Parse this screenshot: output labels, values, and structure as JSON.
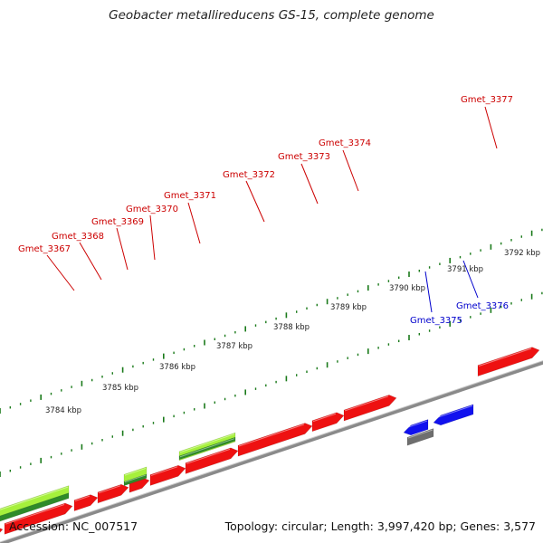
{
  "title": "Geobacter metallireducens GS-15, complete genome",
  "accession": "Accession: NC_007517",
  "summary": "Topology: circular; Length: 3,997,420 bp; Genes: 3,577",
  "colors": {
    "forward_cds": "#ee1111",
    "reverse_cds": "#1111ee",
    "light_green": "#a6f03c",
    "dark_green": "#2f8a2a",
    "gray_feature": "#6e6e6e",
    "backbone": "#8a8a8a",
    "tick": "#1a7a1a"
  },
  "tick_labels": [
    "3784 kbp",
    "3785 kbp",
    "3786 kbp",
    "3787 kbp",
    "3788 kbp",
    "3789 kbp",
    "3790 kbp",
    "3791 kbp",
    "3792 kbp"
  ],
  "gene_labels": [
    {
      "name": "Gmet_3367",
      "color": "#cc0000"
    },
    {
      "name": "Gmet_3368",
      "color": "#cc0000"
    },
    {
      "name": "Gmet_3369",
      "color": "#cc0000"
    },
    {
      "name": "Gmet_3370",
      "color": "#cc0000"
    },
    {
      "name": "Gmet_3371",
      "color": "#cc0000"
    },
    {
      "name": "Gmet_3372",
      "color": "#cc0000"
    },
    {
      "name": "Gmet_3373",
      "color": "#cc0000"
    },
    {
      "name": "Gmet_3374",
      "color": "#cc0000"
    },
    {
      "name": "Gmet_3377",
      "color": "#cc0000"
    },
    {
      "name": "Gmet_3375",
      "color": "#0000cc"
    },
    {
      "name": "Gmet_3376",
      "color": "#0000cc"
    }
  ]
}
